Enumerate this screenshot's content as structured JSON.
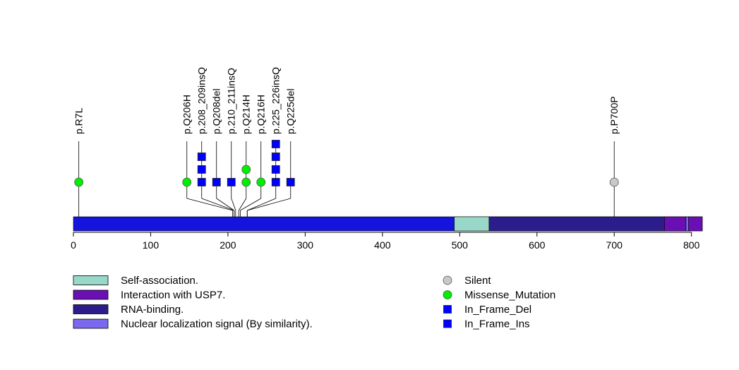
{
  "chart_data": {
    "type": "lollipop",
    "title": "",
    "protein_length": 814,
    "xlim": [
      0,
      814
    ],
    "ticks": [
      0,
      100,
      200,
      300,
      400,
      500,
      600,
      700,
      800
    ],
    "backbone_color": "#1414dc",
    "domains": [
      {
        "name": "Self-association.",
        "start": 493,
        "end": 538,
        "color": "#99d8c9"
      },
      {
        "name": "RNA-binding.",
        "start": 538,
        "end": 765,
        "color": "#2c1c8c"
      },
      {
        "name": "Interaction with USP7.",
        "start": 765,
        "end": 793,
        "color": "#6a0fb4"
      },
      {
        "name": "Nuclear localization signal (By similarity).",
        "start": 793,
        "end": 796,
        "color": "#7b68ee"
      },
      {
        "name": "Interaction with USP7.",
        "start": 796,
        "end": 814,
        "color": "#6a0fb4"
      }
    ],
    "mutations": [
      {
        "label": "p.R7L",
        "position": 7,
        "type": "Missense_Mutation",
        "markers": [
          "Missense_Mutation"
        ]
      },
      {
        "label": "p.Q206H",
        "position": 206,
        "type": "Missense_Mutation",
        "markers": [
          "Missense_Mutation"
        ]
      },
      {
        "label": "p.208_209insQ",
        "position": 208,
        "type": "In_Frame_Ins",
        "markers": [
          "In_Frame_Ins",
          "In_Frame_Ins",
          "In_Frame_Ins"
        ]
      },
      {
        "label": "p.Q208del",
        "position": 208,
        "type": "In_Frame_Del",
        "markers": [
          "In_Frame_Del"
        ]
      },
      {
        "label": "p.210_211insQ",
        "position": 210,
        "type": "In_Frame_Ins",
        "markers": [
          "In_Frame_Ins"
        ]
      },
      {
        "label": "p.Q214H",
        "position": 214,
        "type": "Missense_Mutation",
        "markers": [
          "Missense_Mutation",
          "Missense_Mutation"
        ]
      },
      {
        "label": "p.Q216H",
        "position": 216,
        "type": "Missense_Mutation",
        "markers": [
          "Missense_Mutation"
        ]
      },
      {
        "label": "p.225_226insQ",
        "position": 225,
        "type": "In_Frame_Ins",
        "markers": [
          "In_Frame_Ins",
          "In_Frame_Ins",
          "In_Frame_Ins",
          "In_Frame_Ins"
        ]
      },
      {
        "label": "p.Q225del",
        "position": 225,
        "type": "In_Frame_Del",
        "markers": [
          "In_Frame_Del"
        ]
      },
      {
        "label": "p.P700P",
        "position": 700,
        "type": "Silent",
        "markers": [
          "Silent"
        ]
      }
    ],
    "legend_domains": [
      {
        "label": "Self-association.",
        "color": "#99d8c9"
      },
      {
        "label": "Interaction with USP7.",
        "color": "#6a0fb4"
      },
      {
        "label": "RNA-binding.",
        "color": "#2c1c8c"
      },
      {
        "label": "Nuclear localization signal (By similarity).",
        "color": "#7b68ee"
      }
    ],
    "legend_mutations": [
      {
        "label": "Silent",
        "shape": "circle",
        "color": "#c8c8c8"
      },
      {
        "label": "Missense_Mutation",
        "shape": "circle",
        "color": "#00ee00"
      },
      {
        "label": "In_Frame_Del",
        "shape": "square",
        "color": "#0000ff"
      },
      {
        "label": "In_Frame_Ins",
        "shape": "square",
        "color": "#0000ff"
      }
    ],
    "marker_colors": {
      "Silent": "#c8c8c8",
      "Missense_Mutation": "#00ee00",
      "In_Frame_Del": "#0000ff",
      "In_Frame_Ins": "#0000ff"
    }
  }
}
